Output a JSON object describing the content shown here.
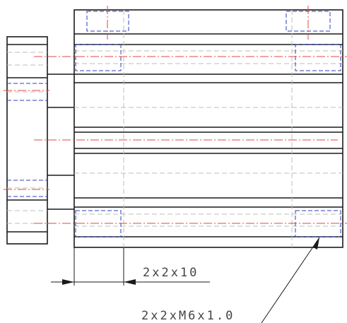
{
  "annotations": {
    "counterbore_dimension": "2x2x10",
    "thread_callout": "2x2xM6x1.0"
  },
  "colors": {
    "outline": "#1a1a1a",
    "hidden_gray": "#bdbdbd",
    "hidden_blue": "#2c3fb8",
    "centerline_red": "#e34a3c",
    "text": "#444444"
  }
}
